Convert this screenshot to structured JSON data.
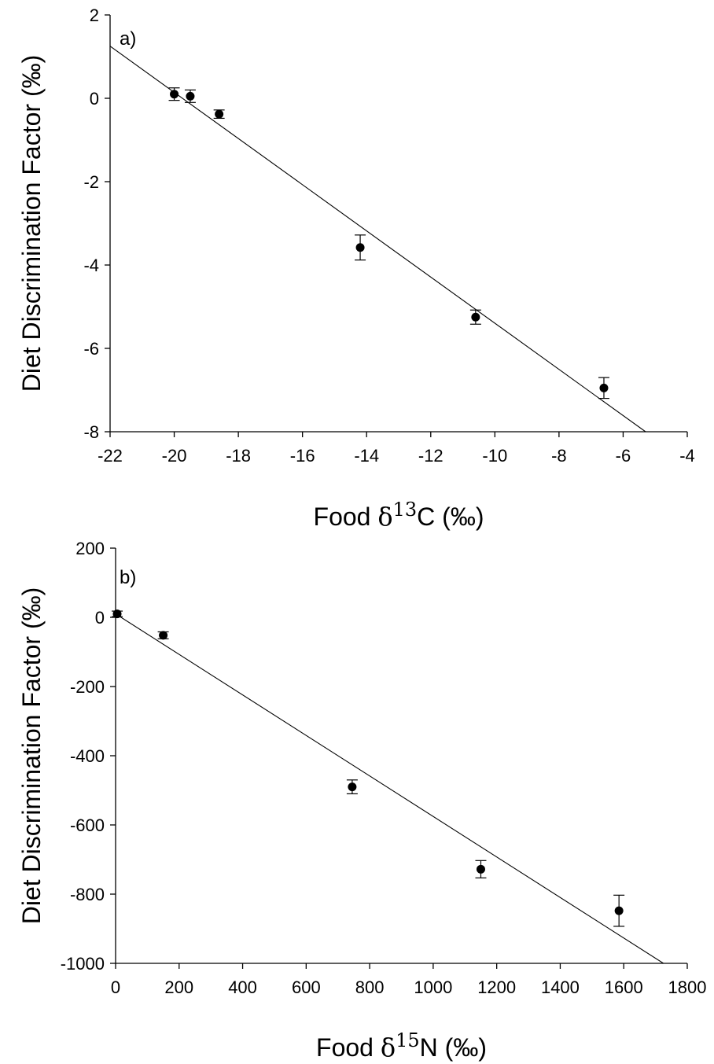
{
  "chart_data": [
    {
      "type": "scatter",
      "panel_label": "a)",
      "xlabel": {
        "prefix": "Food ",
        "delta": "δ",
        "sup": "13",
        "suffix": "C (‰)"
      },
      "ylabel": "Diet Discrimination Factor (‰)",
      "xlim": [
        -22,
        -4
      ],
      "ylim": [
        -8,
        2
      ],
      "xticks": [
        -22,
        -20,
        -18,
        -16,
        -14,
        -12,
        -10,
        -8,
        -6,
        -4
      ],
      "yticks": [
        -8,
        -6,
        -4,
        -2,
        0,
        2
      ],
      "xticklabels": [
        "-22",
        "-20",
        "-18",
        "-16",
        "-14",
        "-12",
        "-10",
        "-8",
        "-6",
        "-4"
      ],
      "yticklabels": [
        "-8",
        "-6",
        "-4",
        "-2",
        "0",
        "2"
      ],
      "points": [
        {
          "x": -20.0,
          "y": 0.1,
          "err": 0.15
        },
        {
          "x": -19.5,
          "y": 0.05,
          "err": 0.15
        },
        {
          "x": -18.6,
          "y": -0.38,
          "err": 0.1
        },
        {
          "x": -14.2,
          "y": -3.58,
          "err": 0.3
        },
        {
          "x": -10.6,
          "y": -5.25,
          "err": 0.17
        },
        {
          "x": -6.6,
          "y": -6.95,
          "err": 0.25
        }
      ],
      "regression": {
        "x": [
          -22,
          -5.3
        ],
        "y": [
          1.25,
          -8
        ]
      },
      "grid": false
    },
    {
      "type": "scatter",
      "panel_label": "b)",
      "xlabel": {
        "prefix": "Food ",
        "delta": "δ",
        "sup": "15",
        "suffix": "N (‰)"
      },
      "ylabel": "Diet Discrimination Factor (‰)",
      "xlim": [
        0,
        1800
      ],
      "ylim": [
        -1000,
        200
      ],
      "xticks": [
        0,
        200,
        400,
        600,
        800,
        1000,
        1200,
        1400,
        1600,
        1800
      ],
      "yticks": [
        -1000,
        -800,
        -600,
        -400,
        -200,
        0,
        200
      ],
      "xticklabels": [
        "0",
        "200",
        "400",
        "600",
        "800",
        "1000",
        "1200",
        "1400",
        "1600",
        "1800"
      ],
      "yticklabels": [
        "-1000",
        "-800",
        "-600",
        "-400",
        "-200",
        "0",
        "200"
      ],
      "points": [
        {
          "x": 5,
          "y": 10,
          "err": 8
        },
        {
          "x": 150,
          "y": -52,
          "err": 10
        },
        {
          "x": 745,
          "y": -490,
          "err": 20
        },
        {
          "x": 1150,
          "y": -728,
          "err": 25
        },
        {
          "x": 1585,
          "y": -848,
          "err": 45
        }
      ],
      "regression": {
        "x": [
          0,
          1725
        ],
        "y": [
          10,
          -1000
        ]
      },
      "grid": false
    }
  ]
}
